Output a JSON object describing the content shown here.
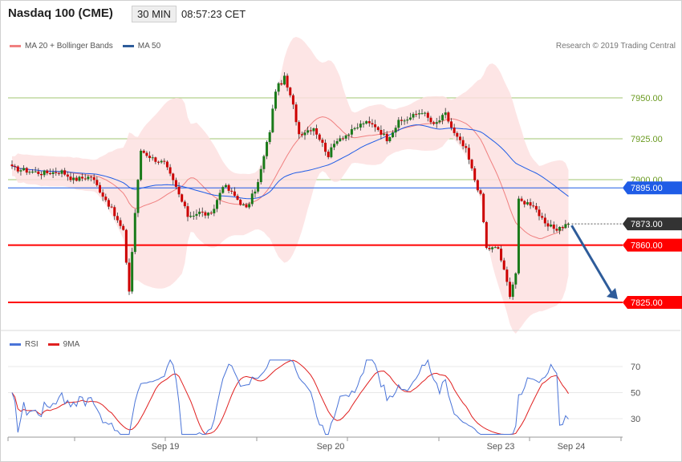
{
  "header": {
    "title": "Nasdaq 100 (CME)",
    "timeframe": "30 MIN",
    "time": "08:57:23 CET"
  },
  "main_legend": [
    {
      "label": "MA 20 + Bollinger Bands",
      "color": "#f08080"
    },
    {
      "label": "MA 50",
      "color": "#2e5c9a"
    }
  ],
  "copyright": "Research © 2019 Trading Central",
  "rsi_legend": [
    {
      "label": "RSI",
      "color": "#4a74d8"
    },
    {
      "label": "9MA",
      "color": "#e02020"
    }
  ],
  "colors": {
    "up": "#1a7a1a",
    "down": "#cc0000",
    "band_fill": "#fde0e0",
    "support": "#ff0000",
    "resistance": "#80b040",
    "blue_level": "#1f5ce6",
    "last_price": "#333333",
    "arrow": "#2e5c9a"
  },
  "chart_data": [
    {
      "type": "candlestick",
      "y_ticks": [
        7950,
        7925,
        7900
      ],
      "x_tick_labels": [
        "Sep 19",
        "Sep 20",
        "Sep 23",
        "Sep 24"
      ],
      "ylim": [
        7815,
        7978
      ],
      "resistance_levels": [
        "7950.00",
        "7925.00"
      ],
      "level_labels": [
        {
          "value": 7895.0,
          "text": "7895.00",
          "style": "blue"
        },
        {
          "value": 7873.0,
          "text": "7873.00",
          "style": "last"
        },
        {
          "value": 7860.0,
          "text": "7860.00",
          "style": "red"
        },
        {
          "value": 7825.0,
          "text": "7825.00",
          "style": "red"
        }
      ],
      "projection": {
        "from": 7873,
        "to": 7825
      },
      "close_anchors": [
        [
          0,
          7907
        ],
        [
          10,
          7904
        ],
        [
          17,
          7905
        ],
        [
          21,
          7900
        ],
        [
          27,
          7902
        ],
        [
          33,
          7885
        ],
        [
          38,
          7868
        ],
        [
          40,
          7832
        ],
        [
          42,
          7880
        ],
        [
          44,
          7918
        ],
        [
          48,
          7913
        ],
        [
          52,
          7910
        ],
        [
          56,
          7895
        ],
        [
          60,
          7878
        ],
        [
          64,
          7880
        ],
        [
          68,
          7878
        ],
        [
          72,
          7897
        ],
        [
          76,
          7890
        ],
        [
          80,
          7882
        ],
        [
          84,
          7898
        ],
        [
          88,
          7930
        ],
        [
          90,
          7955
        ],
        [
          93,
          7962
        ],
        [
          96,
          7945
        ],
        [
          98,
          7928
        ],
        [
          103,
          7932
        ],
        [
          108,
          7915
        ],
        [
          111,
          7925
        ],
        [
          115,
          7928
        ],
        [
          120,
          7935
        ],
        [
          124,
          7933
        ],
        [
          128,
          7925
        ],
        [
          132,
          7935
        ],
        [
          136,
          7938
        ],
        [
          140,
          7942
        ],
        [
          144,
          7933
        ],
        [
          148,
          7940
        ],
        [
          151,
          7928
        ],
        [
          155,
          7918
        ],
        [
          158,
          7900
        ],
        [
          160,
          7890
        ],
        [
          162,
          7858
        ],
        [
          166,
          7858
        ],
        [
          170,
          7830
        ],
        [
          172,
          7843
        ],
        [
          173,
          7887
        ],
        [
          178,
          7885
        ],
        [
          182,
          7872
        ],
        [
          186,
          7870
        ],
        [
          190,
          7873
        ]
      ],
      "candle_count": 191
    },
    {
      "type": "line",
      "name": "RSI",
      "series": [
        "RSI",
        "9MA"
      ],
      "y_ticks": [
        70,
        50,
        30
      ],
      "ylim": [
        15,
        78
      ]
    }
  ]
}
